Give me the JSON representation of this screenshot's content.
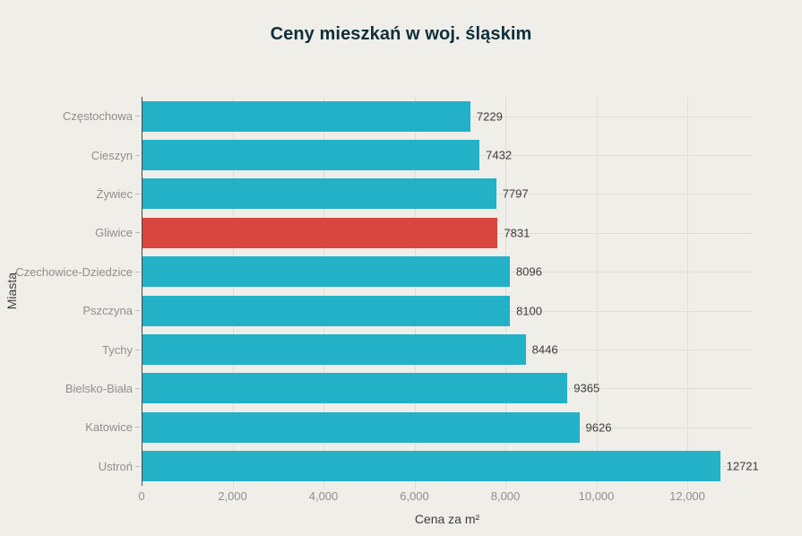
{
  "page": {
    "background": "#efeee9"
  },
  "chart_data": {
    "type": "bar",
    "orientation": "horizontal",
    "title": "Ceny mieszkań w woj. śląskim",
    "xlabel": "Cena za m²",
    "ylabel": "Miasta",
    "categories": [
      "Częstochowa",
      "Cieszyn",
      "Żywiec",
      "Gliwice",
      "Czechowice-Dziedzice",
      "Pszczyna",
      "Tychy",
      "Bielsko-Biała",
      "Katowice",
      "Ustroń"
    ],
    "values": [
      7229,
      7432,
      7797,
      7831,
      8096,
      8100,
      8446,
      9365,
      9626,
      12721
    ],
    "highlight_index": 3,
    "highlight_category": "Gliwice",
    "colors": {
      "bar": "#23b1c7",
      "highlight": "#d9453f",
      "title": "#0f2e3b",
      "value_label": "#3c3c3c",
      "tick_label": "#8f8f8c",
      "gridline": "#deddd6",
      "axis_line": "#454545",
      "background": "#efeee9"
    },
    "xlim": [
      0,
      13438
    ],
    "xticks": [
      0,
      2000,
      4000,
      6000,
      8000,
      10000,
      12000
    ],
    "xtick_labels": [
      "0",
      "2,000",
      "4,000",
      "6,000",
      "8,000",
      "10,000",
      "12,000"
    ],
    "grid": true,
    "legend": null
  }
}
